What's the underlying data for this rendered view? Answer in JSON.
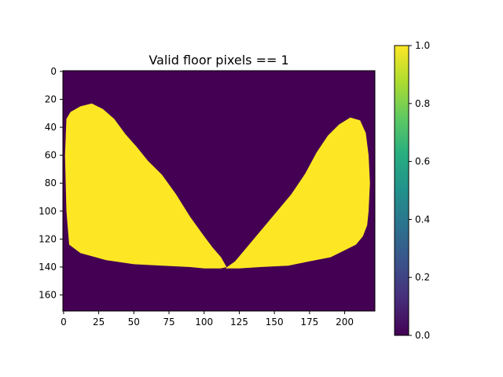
{
  "chart_data": {
    "type": "heatmap",
    "title": "Valid floor pixels == 1",
    "image_size": {
      "cols": 222,
      "rows": 172
    },
    "x_range": [
      -0.5,
      221.5
    ],
    "y_range": [
      171.5,
      -0.5
    ],
    "x_ticks": [
      0,
      25,
      50,
      75,
      100,
      125,
      150,
      175,
      200
    ],
    "y_ticks": [
      0,
      20,
      40,
      60,
      80,
      100,
      120,
      140,
      160
    ],
    "value_range": [
      0.0,
      1.0
    ],
    "colormap": "viridis",
    "colorbar_ticks": [
      "0.0",
      "0.2",
      "0.4",
      "0.6",
      "0.8",
      "1.0"
    ],
    "colors": {
      "zero": "#440154",
      "one": "#fde725"
    },
    "valid_region": {
      "left": [
        [
          2,
          34
        ],
        [
          5,
          29
        ],
        [
          12,
          25
        ],
        [
          20,
          23
        ],
        [
          28,
          27
        ],
        [
          36,
          34
        ],
        [
          44,
          45
        ],
        [
          52,
          54
        ],
        [
          60,
          64
        ],
        [
          70,
          74
        ],
        [
          80,
          88
        ],
        [
          90,
          104
        ],
        [
          100,
          118
        ],
        [
          106,
          126
        ],
        [
          112,
          133
        ],
        [
          116,
          140
        ],
        [
          112,
          141
        ],
        [
          100,
          141
        ],
        [
          90,
          140
        ],
        [
          70,
          139
        ],
        [
          50,
          138
        ],
        [
          30,
          135
        ],
        [
          12,
          130
        ],
        [
          4,
          124
        ],
        [
          2,
          100
        ],
        [
          1,
          60
        ]
      ],
      "right": [
        [
          115,
          141
        ],
        [
          122,
          136
        ],
        [
          132,
          124
        ],
        [
          142,
          112
        ],
        [
          152,
          100
        ],
        [
          162,
          88
        ],
        [
          172,
          73
        ],
        [
          180,
          58
        ],
        [
          188,
          46
        ],
        [
          196,
          38
        ],
        [
          204,
          33
        ],
        [
          211,
          35
        ],
        [
          215,
          44
        ],
        [
          217,
          60
        ],
        [
          218,
          80
        ],
        [
          217,
          100
        ],
        [
          216,
          110
        ],
        [
          213,
          118
        ],
        [
          208,
          124
        ],
        [
          200,
          128
        ],
        [
          190,
          133
        ],
        [
          175,
          136
        ],
        [
          160,
          139
        ],
        [
          140,
          140
        ],
        [
          125,
          141
        ]
      ]
    }
  }
}
